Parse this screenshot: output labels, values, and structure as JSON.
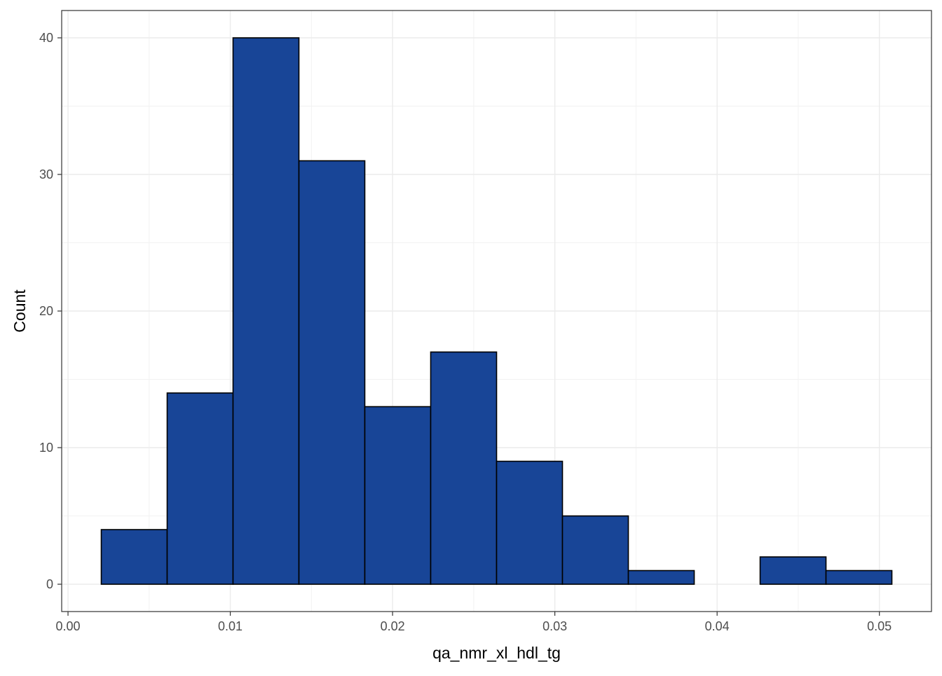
{
  "chart_data": {
    "type": "bar",
    "title": "",
    "xlabel": "qa_nmr_xl_hdl_tg",
    "ylabel": "Count",
    "bins": [
      {
        "x0": 0.00205,
        "x1": 0.00611,
        "count": 4
      },
      {
        "x0": 0.00611,
        "x1": 0.01017,
        "count": 14
      },
      {
        "x0": 0.01017,
        "x1": 0.01423,
        "count": 40
      },
      {
        "x0": 0.01423,
        "x1": 0.01829,
        "count": 31
      },
      {
        "x0": 0.01829,
        "x1": 0.02235,
        "count": 13
      },
      {
        "x0": 0.02235,
        "x1": 0.02641,
        "count": 17
      },
      {
        "x0": 0.02641,
        "x1": 0.03047,
        "count": 9
      },
      {
        "x0": 0.03047,
        "x1": 0.03453,
        "count": 5
      },
      {
        "x0": 0.03453,
        "x1": 0.03859,
        "count": 1
      },
      {
        "x0": 0.03859,
        "x1": 0.04265,
        "count": 0
      },
      {
        "x0": 0.04265,
        "x1": 0.04671,
        "count": 2
      },
      {
        "x0": 0.04671,
        "x1": 0.05077,
        "count": 1
      }
    ],
    "xlim": [
      -0.00039,
      0.05321
    ],
    "ylim": [
      -2.0,
      42.0
    ],
    "x_ticks": [
      0.0,
      0.01,
      0.02,
      0.03,
      0.04,
      0.05
    ],
    "x_tick_labels": [
      "0.00",
      "0.01",
      "0.02",
      "0.03",
      "0.04",
      "0.05"
    ],
    "y_ticks": [
      0,
      10,
      20,
      30,
      40
    ],
    "y_tick_labels": [
      "0",
      "10",
      "20",
      "30",
      "40"
    ],
    "grid": true,
    "legend": "none",
    "colors": {
      "bar_fill": "#184597",
      "bar_stroke": "#000000",
      "grid_major": "#ebebeb",
      "grid_minor": "#f2f2f2",
      "panel_border": "#333333",
      "tick_color": "#333333"
    }
  }
}
